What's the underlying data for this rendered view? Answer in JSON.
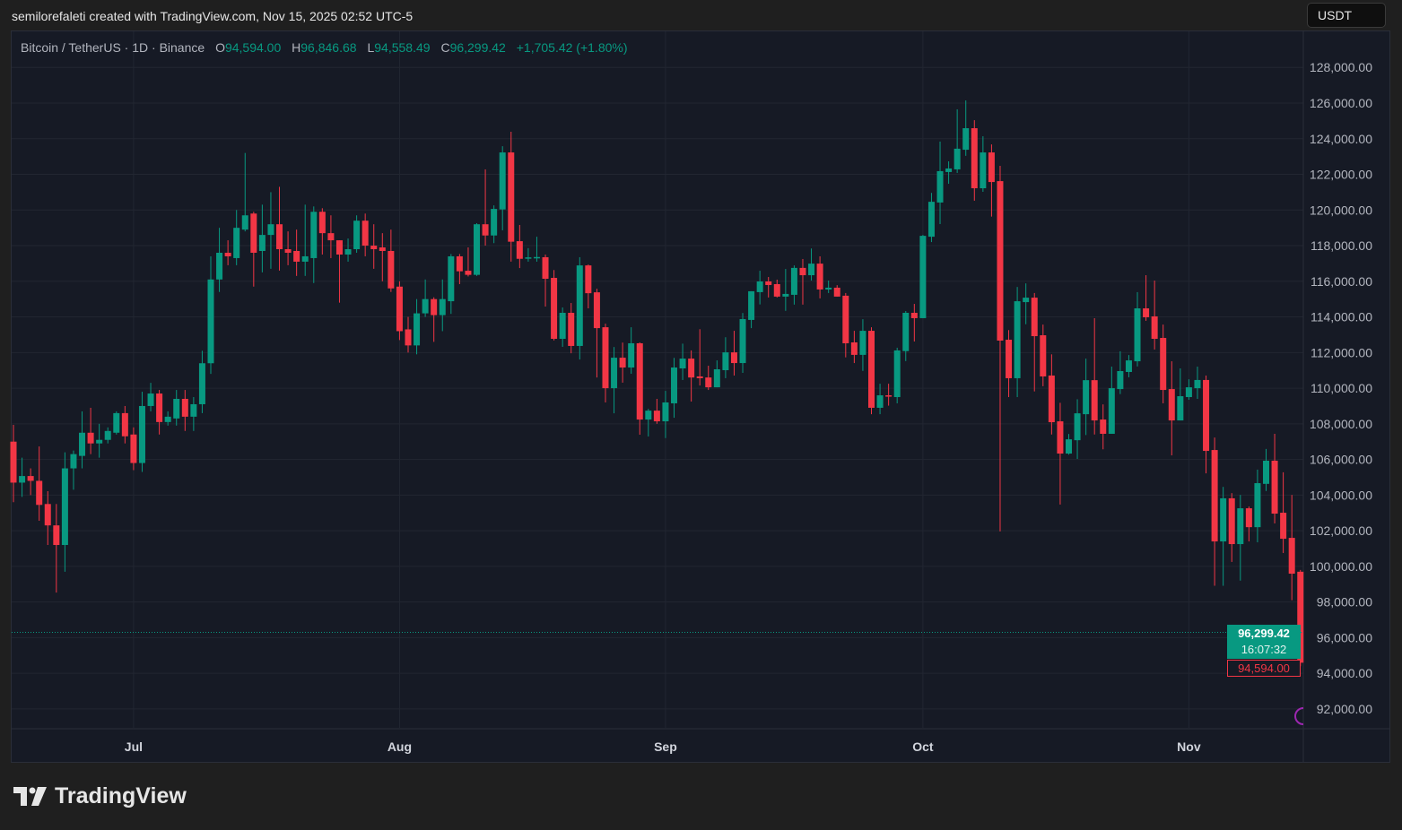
{
  "credit": "semilorefaleti created with TradingView.com, Nov 15, 2025 02:52 UTC-5",
  "legend": {
    "symbol": "Bitcoin / TetherUS · 1D · Binance",
    "o_label": "O",
    "o": "94,594.00",
    "h_label": "H",
    "h": "96,846.68",
    "l_label": "L",
    "l": "94,558.49",
    "c_label": "C",
    "c": "96,299.42",
    "change": "+1,705.42 (+1.80%)"
  },
  "currency_button": "USDT",
  "last_price": {
    "price": "96,299.42",
    "countdown": "16:07:32"
  },
  "open_price_label": "94,594.00",
  "brand": "TradingView",
  "colors": {
    "up": "#089981",
    "down": "#f23645",
    "background": "#161a25",
    "grid": "#222631"
  },
  "chart_data": {
    "type": "candlestick",
    "title": "Bitcoin / TetherUS · 1D · Binance",
    "ylabel": "USDT",
    "ylim": [
      90000,
      128000
    ],
    "y_ticks": [
      "92,000.00",
      "94,000.00",
      "96,000.00",
      "98,000.00",
      "100,000.00",
      "102,000.00",
      "104,000.00",
      "106,000.00",
      "108,000.00",
      "110,000.00",
      "112,000.00",
      "114,000.00",
      "116,000.00",
      "118,000.00",
      "120,000.00",
      "122,000.00",
      "124,000.00",
      "126,000.00",
      "128,000.00"
    ],
    "y_tick_values": [
      92000,
      94000,
      96000,
      98000,
      100000,
      102000,
      104000,
      106000,
      108000,
      110000,
      112000,
      114000,
      116000,
      118000,
      120000,
      122000,
      124000,
      126000,
      128000
    ],
    "x_ticks": [
      {
        "label": "Jul",
        "index": 14
      },
      {
        "label": "Aug",
        "index": 45
      },
      {
        "label": "Sep",
        "index": 76
      },
      {
        "label": "Oct",
        "index": 106
      },
      {
        "label": "Nov",
        "index": 137
      }
    ],
    "current_price": 96299.42,
    "ohlc_fields": [
      "open",
      "high",
      "low",
      "close"
    ],
    "candles": [
      [
        107000,
        107940,
        103600,
        104700
      ],
      [
        104700,
        106100,
        103900,
        105070
      ],
      [
        105070,
        105500,
        104000,
        104800
      ],
      [
        104800,
        106730,
        102560,
        103450
      ],
      [
        103500,
        104220,
        101200,
        102300
      ],
      [
        102300,
        103500,
        98530,
        101200
      ],
      [
        101200,
        106400,
        99700,
        105500
      ],
      [
        105500,
        106500,
        104300,
        106300
      ],
      [
        106200,
        108700,
        105500,
        107500
      ],
      [
        107500,
        108900,
        106300,
        106900
      ],
      [
        106900,
        108000,
        106100,
        107100
      ],
      [
        107100,
        107800,
        106900,
        107600
      ],
      [
        107500,
        108700,
        107400,
        108600
      ],
      [
        108600,
        109000,
        106900,
        107300
      ],
      [
        107400,
        107800,
        105400,
        105800
      ],
      [
        105800,
        109800,
        105300,
        109000
      ],
      [
        109000,
        110300,
        108700,
        109700
      ],
      [
        109700,
        109900,
        107400,
        108100
      ],
      [
        108100,
        108700,
        107900,
        108400
      ],
      [
        108300,
        109900,
        107900,
        109400
      ],
      [
        109400,
        109900,
        107600,
        108400
      ],
      [
        108400,
        109500,
        107600,
        109100
      ],
      [
        109100,
        112100,
        108600,
        111400
      ],
      [
        111400,
        117400,
        110800,
        116100
      ],
      [
        116100,
        119000,
        115400,
        117600
      ],
      [
        117600,
        118300,
        116900,
        117400
      ],
      [
        117300,
        120000,
        116900,
        119000
      ],
      [
        118900,
        123200,
        118800,
        119700
      ],
      [
        119800,
        119900,
        115700,
        117600
      ],
      [
        117700,
        120300,
        116500,
        118600
      ],
      [
        118600,
        121000,
        116700,
        119200
      ],
      [
        119200,
        121300,
        116600,
        117800
      ],
      [
        117800,
        118800,
        116900,
        117600
      ],
      [
        117700,
        118900,
        116300,
        117100
      ],
      [
        117100,
        120300,
        116300,
        117400
      ],
      [
        117300,
        120200,
        115900,
        119900
      ],
      [
        119900,
        120100,
        117500,
        118700
      ],
      [
        118700,
        119700,
        117300,
        118300
      ],
      [
        118300,
        118300,
        114800,
        117500
      ],
      [
        117500,
        118400,
        117100,
        117800
      ],
      [
        117800,
        119700,
        117600,
        119400
      ],
      [
        119400,
        119800,
        117400,
        118000
      ],
      [
        118000,
        119200,
        116700,
        117800
      ],
      [
        117900,
        118700,
        116000,
        117700
      ],
      [
        117700,
        118900,
        115400,
        115600
      ],
      [
        115700,
        116000,
        112700,
        113200
      ],
      [
        113300,
        114000,
        112000,
        112400
      ],
      [
        112400,
        115000,
        111900,
        114200
      ],
      [
        114200,
        116100,
        114000,
        115000
      ],
      [
        115000,
        115100,
        112600,
        114100
      ],
      [
        114100,
        116100,
        113200,
        115000
      ],
      [
        114880,
        117530,
        114170,
        117400
      ],
      [
        117400,
        117530,
        115840,
        116560
      ],
      [
        116590,
        117900,
        116270,
        116360
      ],
      [
        116360,
        119260,
        116300,
        119200
      ],
      [
        119200,
        122280,
        118000,
        118570
      ],
      [
        118570,
        120260,
        118140,
        120060
      ],
      [
        120030,
        123580,
        118860,
        123230
      ],
      [
        123230,
        124390,
        117100,
        118220
      ],
      [
        118250,
        119160,
        116740,
        117260
      ],
      [
        117290,
        117860,
        117100,
        117340
      ],
      [
        117340,
        118500,
        117100,
        117360
      ],
      [
        117350,
        117500,
        114580,
        116140
      ],
      [
        116190,
        116630,
        112680,
        112770
      ],
      [
        112770,
        114530,
        112320,
        114230
      ],
      [
        114230,
        114780,
        111960,
        112370
      ],
      [
        112370,
        117350,
        111610,
        116890
      ],
      [
        116890,
        116940,
        114480,
        115330
      ],
      [
        115380,
        115580,
        110600,
        113370
      ],
      [
        113420,
        113620,
        109200,
        110000
      ],
      [
        110000,
        112310,
        108590,
        111710
      ],
      [
        111710,
        112560,
        110310,
        111160
      ],
      [
        111160,
        113420,
        110810,
        112520
      ],
      [
        112520,
        112570,
        107390,
        108240
      ],
      [
        108240,
        108840,
        107290,
        108740
      ],
      [
        108740,
        109400,
        108000,
        108140
      ],
      [
        108140,
        109850,
        107200,
        109200
      ],
      [
        109150,
        111700,
        108340,
        111160
      ],
      [
        111110,
        112500,
        110460,
        111660
      ],
      [
        111660,
        112120,
        109250,
        110600
      ],
      [
        110660,
        113310,
        110150,
        110560
      ],
      [
        110600,
        111260,
        109900,
        110050
      ],
      [
        110050,
        111560,
        110050,
        111060
      ],
      [
        111010,
        112860,
        110560,
        112010
      ],
      [
        112010,
        113220,
        110710,
        111410
      ],
      [
        111410,
        114220,
        110860,
        113880
      ],
      [
        113830,
        115440,
        113370,
        115440
      ],
      [
        115390,
        116590,
        114700,
        115990
      ],
      [
        115990,
        116240,
        115090,
        115790
      ],
      [
        115840,
        116090,
        115090,
        115140
      ],
      [
        115140,
        116690,
        114340,
        115290
      ],
      [
        115240,
        116890,
        114690,
        116750
      ],
      [
        116750,
        117250,
        114690,
        116340
      ],
      [
        116340,
        117840,
        116040,
        116990
      ],
      [
        116990,
        117400,
        115040,
        115540
      ],
      [
        115540,
        116040,
        115340,
        115640
      ],
      [
        115640,
        115780,
        115140,
        115140
      ],
      [
        115190,
        115340,
        111730,
        112520
      ],
      [
        112570,
        113220,
        111410,
        111870
      ],
      [
        111870,
        113870,
        110970,
        113220
      ],
      [
        113220,
        113420,
        108540,
        108900
      ],
      [
        108900,
        110250,
        108540,
        109600
      ],
      [
        109600,
        110250,
        109020,
        109550
      ],
      [
        109500,
        112270,
        109150,
        112120
      ],
      [
        112080,
        114330,
        111520,
        114230
      ],
      [
        114230,
        114730,
        112620,
        113930
      ],
      [
        113930,
        118600,
        113930,
        118550
      ],
      [
        118500,
        120960,
        118200,
        120460
      ],
      [
        120420,
        123840,
        119210,
        122180
      ],
      [
        122130,
        122730,
        121470,
        122330
      ],
      [
        122280,
        125650,
        122080,
        123440
      ],
      [
        123380,
        126150,
        123040,
        124590
      ],
      [
        124590,
        125040,
        120520,
        121220
      ],
      [
        121220,
        124140,
        121020,
        123230
      ],
      [
        123230,
        123680,
        119630,
        121570
      ],
      [
        121620,
        122480,
        101960,
        112670
      ],
      [
        112720,
        113260,
        109500,
        110560
      ],
      [
        110560,
        115680,
        109500,
        114880
      ],
      [
        114830,
        115880,
        113590,
        115080
      ],
      [
        115080,
        115340,
        109820,
        112920
      ],
      [
        112970,
        113570,
        110110,
        110660
      ],
      [
        110710,
        111900,
        107400,
        108090
      ],
      [
        108140,
        109180,
        103470,
        106330
      ],
      [
        106330,
        107430,
        106270,
        107130
      ],
      [
        107080,
        109380,
        106030,
        108590
      ],
      [
        108540,
        111660,
        107370,
        110450
      ],
      [
        110450,
        113930,
        107400,
        108190
      ],
      [
        108240,
        109090,
        106570,
        107440
      ],
      [
        107440,
        111210,
        107440,
        110000
      ],
      [
        109950,
        112070,
        109670,
        110960
      ],
      [
        110910,
        111860,
        110610,
        111560
      ],
      [
        111510,
        115390,
        111220,
        114480
      ],
      [
        114480,
        116340,
        113780,
        113980
      ],
      [
        114030,
        116040,
        112170,
        112770
      ],
      [
        112820,
        113570,
        109150,
        109900
      ],
      [
        109950,
        111510,
        106230,
        108190
      ],
      [
        108190,
        111110,
        108190,
        109550
      ],
      [
        109500,
        110500,
        109350,
        110050
      ],
      [
        110000,
        111210,
        109400,
        110460
      ],
      [
        110460,
        110710,
        105220,
        106480
      ],
      [
        106530,
        107230,
        98910,
        101400
      ],
      [
        101400,
        104460,
        98910,
        103820
      ],
      [
        103820,
        104110,
        100250,
        101250
      ],
      [
        101250,
        104010,
        99200,
        103260
      ],
      [
        103260,
        103360,
        101400,
        102200
      ],
      [
        102200,
        105430,
        101350,
        104670
      ],
      [
        104630,
        106590,
        104230,
        105930
      ],
      [
        105930,
        107440,
        102410,
        102960
      ],
      [
        103010,
        105280,
        100750,
        101550
      ],
      [
        101600,
        104010,
        98100,
        99590
      ],
      [
        99700,
        99800,
        94400,
        94594
      ]
    ]
  }
}
